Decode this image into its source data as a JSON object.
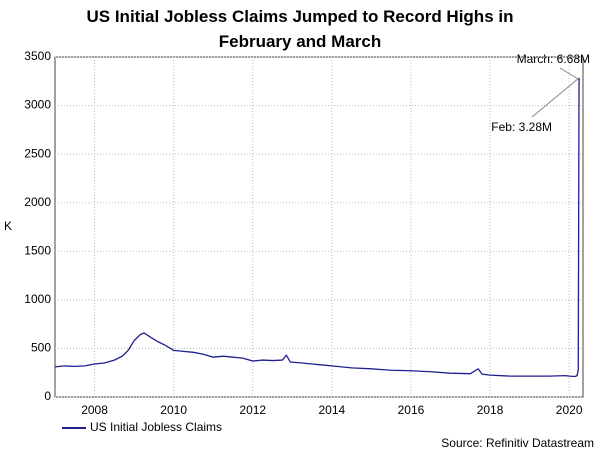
{
  "chart_data": {
    "type": "line",
    "title": "US Initial Jobless Claims Jumped to Record Highs in February and March",
    "ylabel": "K",
    "source": "Source: Refinitiv Datastream",
    "annotations": [
      "March: 6.68M",
      "Feb: 3.28M"
    ],
    "xlim": [
      2007,
      2020.35
    ],
    "xticks": [
      2008,
      2010,
      2012,
      2014,
      2016,
      2018,
      2020
    ],
    "ylim": [
      0,
      3500
    ],
    "yticks": [
      0,
      500,
      1000,
      1500,
      2000,
      2500,
      3000,
      3500
    ],
    "grid": true,
    "legend": "bottom-left",
    "series": [
      {
        "name": "US Initial Jobless Claims",
        "color": "#1f1f8f",
        "x": [
          2007,
          2007.25,
          2007.5,
          2007.75,
          2008,
          2008.25,
          2008.5,
          2008.7,
          2008.85,
          2009,
          2009.15,
          2009.25,
          2009.4,
          2009.6,
          2009.8,
          2010,
          2010.25,
          2010.5,
          2010.75,
          2011,
          2011.25,
          2011.5,
          2011.75,
          2012,
          2012.25,
          2012.5,
          2012.75,
          2012.85,
          2012.95,
          2013.25,
          2013.5,
          2013.75,
          2014,
          2014.5,
          2015,
          2015.5,
          2016,
          2016.5,
          2017,
          2017.5,
          2017.7,
          2017.8,
          2018,
          2018.5,
          2019,
          2019.5,
          2019.9,
          2020,
          2020.15,
          2020.2,
          2020.23,
          2020.25
        ],
        "values": [
          310,
          320,
          315,
          320,
          340,
          350,
          380,
          420,
          480,
          580,
          640,
          660,
          620,
          570,
          530,
          480,
          470,
          460,
          440,
          410,
          420,
          410,
          400,
          370,
          380,
          375,
          380,
          430,
          360,
          350,
          340,
          330,
          320,
          300,
          290,
          275,
          270,
          260,
          245,
          240,
          290,
          235,
          225,
          215,
          215,
          215,
          220,
          215,
          211,
          220,
          282,
          3283
        ]
      }
    ]
  }
}
